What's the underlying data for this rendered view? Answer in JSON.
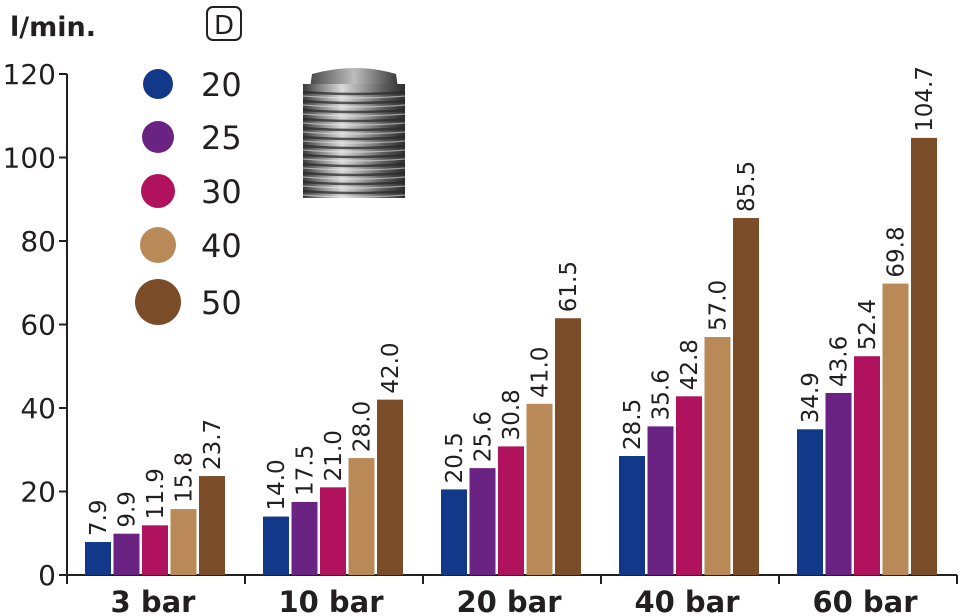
{
  "chart_data": {
    "type": "bar",
    "title": "",
    "xlabel": "",
    "ylabel": "l/min.",
    "ylim": [
      0,
      120
    ],
    "yticks": [
      0,
      20,
      40,
      60,
      80,
      100,
      120
    ],
    "grid": false,
    "legend_placement": "top-left",
    "legend_title": "D",
    "categories": [
      "3 bar",
      "10 bar",
      "20 bar",
      "40 bar",
      "60 bar"
    ],
    "series": [
      {
        "name": "20",
        "color": "#12388a",
        "values": [
          7.9,
          14.0,
          20.5,
          28.5,
          34.9
        ]
      },
      {
        "name": "25",
        "color": "#6a2383",
        "values": [
          9.9,
          17.5,
          25.6,
          35.6,
          43.6
        ]
      },
      {
        "name": "30",
        "color": "#b1125d",
        "values": [
          11.9,
          21.0,
          30.8,
          42.8,
          52.4
        ]
      },
      {
        "name": "40",
        "color": "#b98a57",
        "values": [
          15.8,
          28.0,
          41.0,
          57.0,
          69.8
        ]
      },
      {
        "name": "50",
        "color": "#7a4c28",
        "values": [
          23.7,
          42.0,
          61.5,
          85.5,
          104.7
        ]
      }
    ],
    "value_labels": [
      [
        "7.9",
        "14.0",
        "20.5",
        "28.5",
        "34.9"
      ],
      [
        "9.9",
        "17.5",
        "25.6",
        "35.6",
        "43.6"
      ],
      [
        "11.9",
        "21.0",
        "30.8",
        "42.8",
        "52.4"
      ],
      [
        "15.8",
        "28.0",
        "41.0",
        "57.0",
        "69.8"
      ],
      [
        "23.7",
        "42.0",
        "61.5",
        "85.5",
        "104.7"
      ]
    ]
  },
  "product_image": {
    "icon": "threaded-nozzle-photo"
  }
}
